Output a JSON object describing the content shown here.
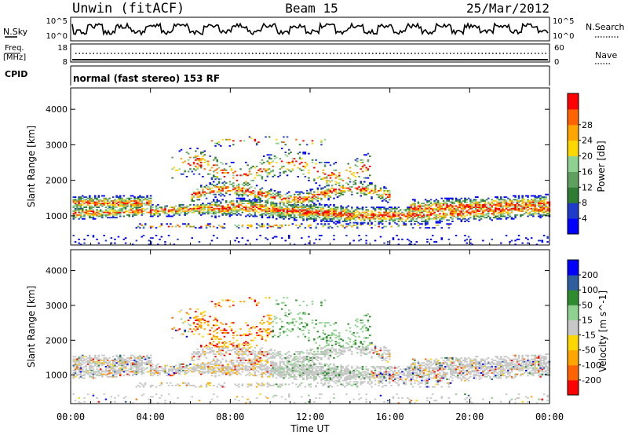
{
  "header": {
    "station": "Unwin (fitACF)",
    "beam": "Beam 15",
    "date": "25/Mar/2012"
  },
  "noise_panel": {
    "left_label": "N.Sky",
    "left_ticks": [
      "10^5",
      "10^0"
    ],
    "right_ticks": [
      "10^5",
      "10^0"
    ],
    "right_label": "N.Search"
  },
  "freq_panel": {
    "label_line1": "Freq.",
    "label_line2": "[MHz]",
    "left_ticks": [
      "18",
      "8"
    ],
    "right_ticks": [
      "60",
      "0"
    ],
    "right_label": "Nave",
    "cpid_label": "CPID"
  },
  "mode_text": "normal (fast stereo) 153 RF",
  "colors": {
    "power_scale": [
      "#0000ff",
      "#1e3cc8",
      "#2e7d32",
      "#5fa05f",
      "#8fd18f",
      "#ffd700",
      "#ffa500",
      "#ff6400",
      "#ff0000"
    ],
    "velocity_scale": [
      "#ff0000",
      "#ff6400",
      "#ffa500",
      "#ffd700",
      "#c8c8c8",
      "#8fd18f",
      "#2e8b2e",
      "#2e5e9e",
      "#0000ff"
    ]
  },
  "chart_data": [
    {
      "type": "heatmap",
      "title": "",
      "xlabel": "",
      "ylabel": "Slant Range [km]",
      "x_range_hours": [
        0,
        24
      ],
      "ylim": [
        180,
        4600
      ],
      "y_ticks": [
        "1000",
        "2000",
        "3000",
        "4000"
      ],
      "colorbar": {
        "label": "Power [dB]",
        "ticks": [
          "4",
          "8",
          "12",
          "16",
          "20",
          "24",
          "28"
        ],
        "range": [
          0,
          30
        ]
      }
    },
    {
      "type": "heatmap",
      "title": "",
      "xlabel": "Time UT",
      "ylabel": "Slant Range [km]",
      "x_range_hours": [
        0,
        24
      ],
      "x_ticks": [
        "00:00",
        "04:00",
        "08:00",
        "12:00",
        "16:00",
        "20:00",
        "00:00"
      ],
      "ylim": [
        180,
        4600
      ],
      "y_ticks": [
        "1000",
        "2000",
        "3000",
        "4000"
      ],
      "colorbar": {
        "label": "Velocity [m s^-1]",
        "ticks": [
          "-200",
          "-100",
          "-50",
          "-15",
          "15",
          "50",
          "100",
          "200"
        ],
        "range": [
          -250,
          250
        ]
      }
    }
  ]
}
